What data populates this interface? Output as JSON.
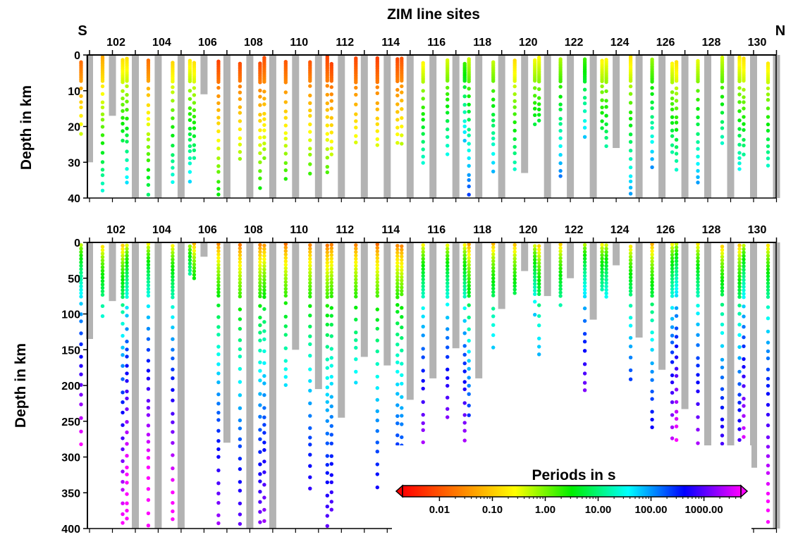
{
  "chart_data": [
    {
      "type": "scatter",
      "title": "ZIM line sites",
      "xlabel": "",
      "ylabel": "Depth in km",
      "ylim": [
        0,
        40
      ],
      "yticks": [
        0,
        10,
        20,
        30,
        40
      ],
      "xticks": [
        "102",
        "104",
        "106",
        "108",
        "110",
        "112",
        "114",
        "116",
        "118",
        "120",
        "122",
        "124",
        "126",
        "128",
        "130"
      ],
      "end_labels": {
        "left": "S",
        "right": "N"
      },
      "grid": false,
      "sites": [
        {
          "site": 101,
          "bar": 30
        },
        {
          "site": 102,
          "bar": 17
        },
        {
          "site": 103,
          "bar": 40
        },
        {
          "site": 104,
          "bar": 40
        },
        {
          "site": 105,
          "bar": 40
        },
        {
          "site": 106,
          "bar": 11
        },
        {
          "site": 107,
          "bar": 40
        },
        {
          "site": 108,
          "bar": 40
        },
        {
          "site": 109,
          "bar": 40
        },
        {
          "site": 110,
          "bar": 40
        },
        {
          "site": 111,
          "bar": 40
        },
        {
          "site": 112,
          "bar": 40
        },
        {
          "site": 113,
          "bar": 40
        },
        {
          "site": 114,
          "bar": 40
        },
        {
          "site": 115,
          "bar": 40
        },
        {
          "site": 116,
          "bar": 40
        },
        {
          "site": 117,
          "bar": 40
        },
        {
          "site": 118,
          "bar": 40
        },
        {
          "site": 119,
          "bar": 40
        },
        {
          "site": 120,
          "bar": 33
        },
        {
          "site": 121,
          "bar": 40
        },
        {
          "site": 122,
          "bar": 40
        },
        {
          "site": 123,
          "bar": 40
        },
        {
          "site": 124,
          "bar": 26
        },
        {
          "site": 125,
          "bar": 40
        },
        {
          "site": 126,
          "bar": 40
        },
        {
          "site": 127,
          "bar": 40
        },
        {
          "site": 128,
          "bar": 40
        },
        {
          "site": 129,
          "bar": 40
        },
        {
          "site": 130,
          "bar": 40
        },
        {
          "site": 131,
          "bar": 40
        }
      ]
    },
    {
      "type": "scatter",
      "title": "",
      "xlabel": "",
      "ylabel": "Depth in km",
      "ylim": [
        0,
        400
      ],
      "yticks": [
        0,
        50,
        100,
        150,
        200,
        250,
        300,
        350,
        400
      ],
      "xticks": [
        "102",
        "104",
        "106",
        "108",
        "110",
        "112",
        "114",
        "116",
        "118",
        "120",
        "122",
        "124",
        "126",
        "128",
        "130"
      ],
      "grid": false,
      "sites": [
        {
          "site": 101,
          "bar": 135
        },
        {
          "site": 102,
          "bar": 82
        },
        {
          "site": 103,
          "bar": 400
        },
        {
          "site": 104,
          "bar": 400
        },
        {
          "site": 105,
          "bar": 400
        },
        {
          "site": 106,
          "bar": 20
        },
        {
          "site": 107,
          "bar": 280
        },
        {
          "site": 108,
          "bar": 400
        },
        {
          "site": 109,
          "bar": 400
        },
        {
          "site": 110,
          "bar": 150
        },
        {
          "site": 111,
          "bar": 205
        },
        {
          "site": 112,
          "bar": 245
        },
        {
          "site": 113,
          "bar": 160
        },
        {
          "site": 114,
          "bar": 172
        },
        {
          "site": 115,
          "bar": 220
        },
        {
          "site": 116,
          "bar": 190
        },
        {
          "site": 117,
          "bar": 148
        },
        {
          "site": 118,
          "bar": 190
        },
        {
          "site": 119,
          "bar": 93
        },
        {
          "site": 120,
          "bar": 40
        },
        {
          "site": 121,
          "bar": 75
        },
        {
          "site": 122,
          "bar": 50
        },
        {
          "site": 123,
          "bar": 108
        },
        {
          "site": 124,
          "bar": 32
        },
        {
          "site": 125,
          "bar": 133
        },
        {
          "site": 126,
          "bar": 178
        },
        {
          "site": 127,
          "bar": 233
        },
        {
          "site": 128,
          "bar": 317
        },
        {
          "site": 129,
          "bar": 305
        },
        {
          "site": 130,
          "bar": 315
        },
        {
          "site": 131,
          "bar": 400
        }
      ]
    }
  ],
  "colorbar": {
    "title": "Periods in s",
    "tick_labels": [
      "0.01",
      "0.10",
      "1.00",
      "10.00",
      "100.00",
      "1000.00"
    ],
    "scale": "log",
    "range": [
      0.002,
      5000
    ],
    "colors": [
      "#ff0000",
      "#ff7f00",
      "#ffff00",
      "#00ee00",
      "#00ffff",
      "#0000ff",
      "#ff00ff"
    ]
  }
}
